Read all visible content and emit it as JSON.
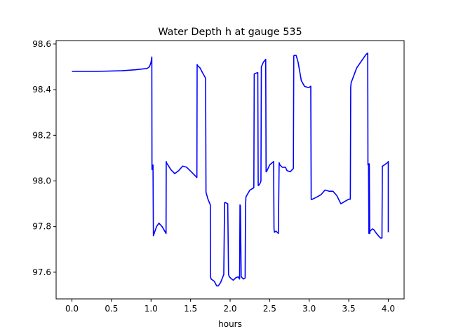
{
  "chart_data": {
    "type": "line",
    "title": "Water Depth h at gauge 535",
    "xlabel": "hours",
    "ylabel": "",
    "xlim": [
      -0.2,
      4.2
    ],
    "ylim": [
      97.483,
      98.615
    ],
    "xticks": [
      0.0,
      0.5,
      1.0,
      1.5,
      2.0,
      2.5,
      3.0,
      3.5,
      4.0
    ],
    "xtick_labels": [
      "0.0",
      "0.5",
      "1.0",
      "1.5",
      "2.0",
      "2.5",
      "3.0",
      "3.5",
      "4.0"
    ],
    "yticks": [
      97.6,
      97.8,
      98.0,
      98.2,
      98.4,
      98.6
    ],
    "ytick_labels": [
      "97.6",
      "97.8",
      "98.0",
      "98.2",
      "98.4",
      "98.6"
    ],
    "grid": false,
    "series": [
      {
        "color": "#0000ff",
        "x": [
          0.0,
          0.3,
          0.63,
          0.8,
          0.95,
          0.98,
          1.0,
          1.01,
          1.012,
          1.015,
          1.02,
          1.025,
          1.03,
          1.07,
          1.1,
          1.14,
          1.19,
          1.192,
          1.195,
          1.25,
          1.3,
          1.35,
          1.4,
          1.45,
          1.5,
          1.58,
          1.583,
          1.59,
          1.62,
          1.65,
          1.69,
          1.695,
          1.72,
          1.75,
          1.752,
          1.76,
          1.8,
          1.83,
          1.85,
          1.88,
          1.92,
          1.93,
          1.94,
          1.97,
          1.98,
          1.99,
          2.02,
          2.04,
          2.07,
          2.1,
          2.12,
          2.125,
          2.13,
          2.14,
          2.17,
          2.19,
          2.195,
          2.2,
          2.25,
          2.3,
          2.305,
          2.31,
          2.35,
          2.355,
          2.36,
          2.38,
          2.39,
          2.395,
          2.42,
          2.45,
          2.455,
          2.46,
          2.5,
          2.55,
          2.555,
          2.56,
          2.58,
          2.61,
          2.62,
          2.625,
          2.63,
          2.66,
          2.7,
          2.72,
          2.76,
          2.8,
          2.805,
          2.81,
          2.835,
          2.86,
          2.9,
          2.94,
          2.98,
          3.0,
          3.02,
          3.025,
          3.03,
          3.1,
          3.15,
          3.2,
          3.25,
          3.3,
          3.35,
          3.4,
          3.45,
          3.5,
          3.52,
          3.525,
          3.53,
          3.6,
          3.65,
          3.7,
          3.72,
          3.74,
          3.743,
          3.75,
          3.755,
          3.76,
          3.765,
          3.77,
          3.8,
          3.82,
          3.85,
          3.9,
          3.92,
          3.925,
          3.93,
          3.95,
          3.99,
          4.0,
          4.0
        ],
        "y": [
          98.48,
          98.48,
          98.483,
          98.487,
          98.493,
          98.5,
          98.52,
          98.543,
          98.05,
          98.07,
          98.05,
          98.07,
          97.76,
          97.8,
          97.815,
          97.8,
          97.77,
          98.085,
          98.08,
          98.05,
          98.032,
          98.045,
          98.065,
          98.06,
          98.043,
          98.015,
          98.51,
          98.505,
          98.495,
          98.475,
          98.45,
          97.95,
          97.92,
          97.895,
          97.58,
          97.57,
          97.56,
          97.54,
          97.54,
          97.555,
          97.59,
          97.905,
          97.905,
          97.9,
          97.59,
          97.58,
          97.57,
          97.565,
          97.575,
          97.58,
          97.57,
          97.895,
          97.89,
          97.58,
          97.57,
          97.575,
          97.89,
          97.93,
          97.96,
          97.97,
          98.468,
          98.47,
          98.475,
          97.98,
          97.98,
          97.99,
          98.0,
          98.5,
          98.52,
          98.533,
          98.04,
          98.04,
          98.07,
          98.085,
          97.79,
          97.775,
          97.78,
          97.77,
          98.08,
          98.075,
          98.07,
          98.06,
          98.06,
          98.045,
          98.04,
          98.055,
          98.548,
          98.55,
          98.55,
          98.52,
          98.44,
          98.415,
          98.41,
          98.41,
          98.415,
          97.92,
          97.918,
          97.93,
          97.94,
          97.96,
          97.955,
          97.955,
          97.935,
          97.9,
          97.91,
          97.92,
          97.92,
          98.41,
          98.43,
          98.495,
          98.52,
          98.545,
          98.555,
          98.56,
          98.07,
          98.075,
          97.77,
          98.075,
          97.77,
          97.78,
          97.79,
          97.785,
          97.77,
          97.75,
          97.75,
          98.065,
          98.065,
          98.07,
          98.08,
          98.085,
          97.775
        ]
      }
    ]
  }
}
